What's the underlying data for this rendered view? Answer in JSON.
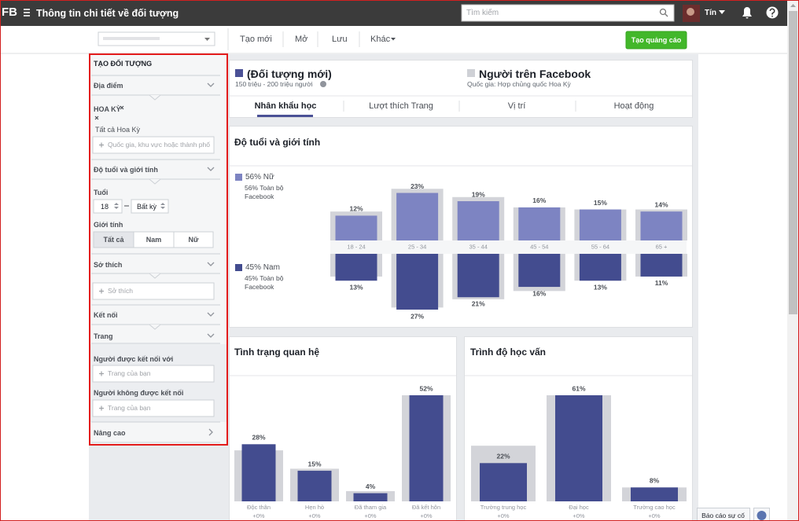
{
  "topbar": {
    "logo": "FB",
    "title": "Thông tin chi tiết về đối tượng",
    "search_placeholder": "Tìm kiếm",
    "user": "Tín"
  },
  "toolbar": {
    "menu": [
      "Tạo mới",
      "Mở",
      "Lưu",
      "Khác"
    ],
    "create_ad": "Tạo quảng cáo"
  },
  "sidebar": {
    "title": "TẠO ĐỐI TƯỢNG",
    "location": {
      "label": "Địa điểm",
      "country": "HOA KỲ",
      "scope": "Tất cả Hoa Kỳ",
      "placeholder": "Quốc gia, khu vực hoặc thành phố"
    },
    "age_gender": {
      "label": "Độ tuổi và giới tính",
      "age_label": "Tuổi",
      "age_from": 18,
      "age_to": "Bất kỳ",
      "gender_label": "Giới tính",
      "genders": [
        "Tất cả",
        "Nam",
        "Nữ"
      ]
    },
    "interests": {
      "label": "Sở thích",
      "placeholder": "Sở thích"
    },
    "connections": {
      "label": "Kết nối",
      "pages": "Trang",
      "connected_label": "Người được kết nối với",
      "connected_placeholder": "Trang của bạn",
      "not_connected_label": "Người không được kết nối",
      "not_connected_placeholder": "Trang của bạn"
    },
    "advanced": "Nâng cao"
  },
  "audience_header": {
    "name": "(Đối tượng mới)",
    "size": "150 triệu - 200 triệu người",
    "compare_name": "Người trên Facebook",
    "compare_detail": "Quốc gia: Hợp chủng quốc Hoa Kỳ"
  },
  "tabs": [
    "Nhân khẩu học",
    "Lượt thích Trang",
    "Vị trí",
    "Hoạt động"
  ],
  "chart_data": [
    {
      "type": "bar",
      "title": "Độ tuổi và giới tính",
      "categories": [
        "18 - 24",
        "25 - 34",
        "35 - 44",
        "45 - 54",
        "55 - 64",
        "65 +"
      ],
      "series": [
        {
          "name": "56% Nữ",
          "color": "#7d84c2",
          "values": [
            12,
            23,
            19,
            16,
            15,
            14
          ],
          "value_labels": [
            "12%",
            "23%",
            "19%",
            "16%",
            "15%",
            "14%"
          ]
        },
        {
          "name": "56% Toàn bộ Facebook",
          "color": "#d3d4d9",
          "values": [
            14,
            25,
            21,
            16,
            15,
            15
          ]
        },
        {
          "name": "45% Nam",
          "color": "#434c8f",
          "values": [
            13,
            27,
            21,
            16,
            13,
            11
          ],
          "value_labels": [
            "13%",
            "27%",
            "21%",
            "16%",
            "13%",
            "11%"
          ]
        },
        {
          "name": "45% Toàn bộ Facebook",
          "color": "#d3d4d9",
          "values": [
            11,
            26,
            22,
            18,
            13,
            11
          ]
        }
      ],
      "ylim": [
        0,
        27
      ]
    },
    {
      "type": "bar",
      "title": "Tình trạng quan hệ",
      "categories": [
        "Độc thân",
        "Hẹn hò",
        "Đã tham gia",
        "Đã kết hôn"
      ],
      "change_labels": [
        "+0%",
        "+0%",
        "+0%",
        "+0%"
      ],
      "series": [
        {
          "color": "#434c8f",
          "values": [
            28,
            15,
            4,
            52
          ],
          "value_labels": [
            "28%",
            "15%",
            "4%",
            "52%"
          ]
        },
        {
          "color": "#d3d4d9",
          "values": [
            25,
            16,
            5,
            52
          ]
        }
      ],
      "ylim": [
        0,
        52
      ]
    },
    {
      "type": "bar",
      "title": "Trình độ học vấn",
      "categories": [
        "Trường trung học",
        "Đại học",
        "Trường cao học"
      ],
      "change_labels": [
        "+0%",
        "+0%",
        "+0%"
      ],
      "series": [
        {
          "color": "#434c8f",
          "values": [
            22,
            61,
            8
          ],
          "value_labels": [
            "22%",
            "61%",
            "8%"
          ]
        },
        {
          "color": "#d3d4d9",
          "values": [
            32,
            61,
            8
          ]
        }
      ],
      "ylim": [
        0,
        61
      ]
    }
  ],
  "footer": {
    "report": "Báo cáo sự cố"
  }
}
